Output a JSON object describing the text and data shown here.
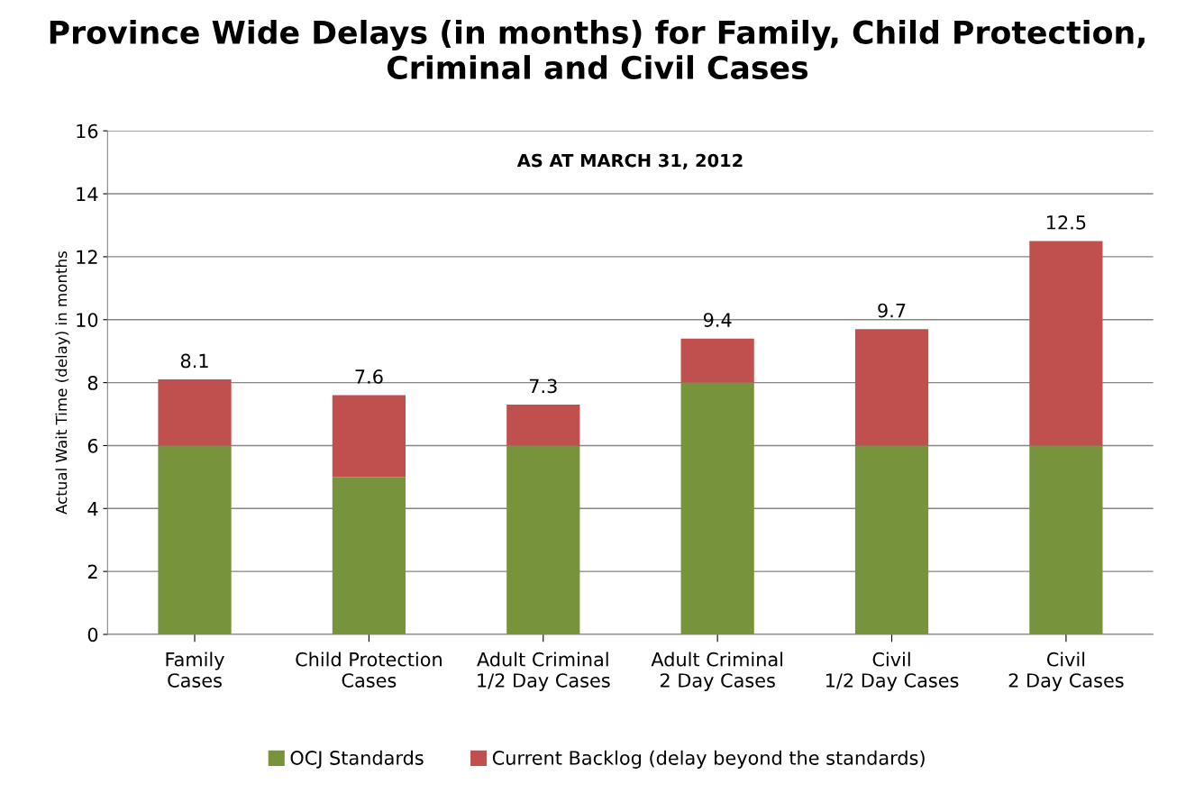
{
  "chart_data": {
    "type": "bar",
    "stacked": true,
    "title": "Province Wide Delays (in months) for Family, Child Protection,\nCriminal and Civil Cases",
    "ylabel": "Actual Wait Time (delay) in months",
    "annotations": [
      "AS AT MARCH 31, 2012"
    ],
    "categories": [
      "Family\nCases",
      "Child Protection\nCases",
      "Adult Criminal\n1/2 Day Cases",
      "Adult Criminal\n2 Day Cases",
      "Civil\n1/2 Day Cases",
      "Civil\n2 Day Cases"
    ],
    "series": [
      {
        "name": "OCJ Standards",
        "color": "#77933c",
        "values": [
          6,
          5,
          6,
          8,
          6,
          6
        ]
      },
      {
        "name": "Current Backlog (delay beyond the standards)",
        "color": "#c0504d",
        "values": [
          2.1,
          2.6,
          1.3,
          1.4,
          3.7,
          6.5
        ]
      }
    ],
    "totals": [
      "8.1",
      "7.6",
      "7.3",
      "9.4",
      "9.7",
      "12.5"
    ],
    "ylim": [
      0,
      16
    ],
    "yticks": [
      0,
      2,
      4,
      6,
      8,
      10,
      12,
      14,
      16
    ],
    "grid": "y",
    "legend": "bottom"
  }
}
